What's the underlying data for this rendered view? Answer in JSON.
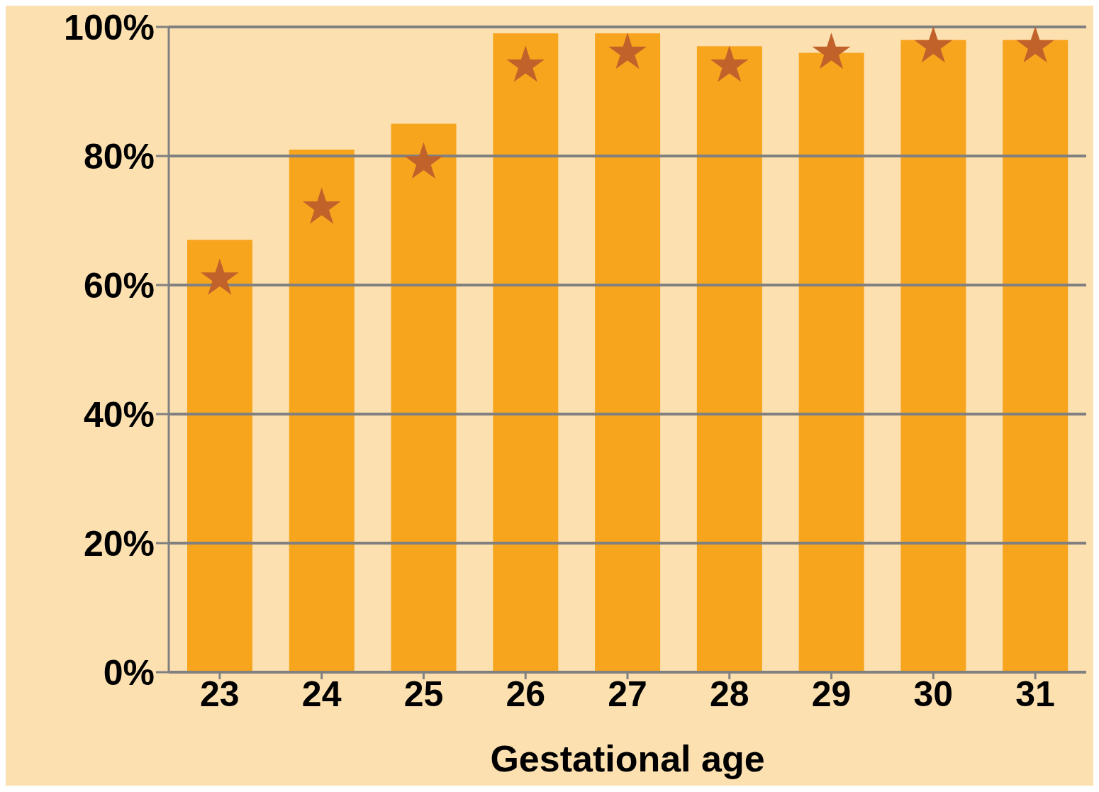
{
  "chart_data": {
    "type": "bar",
    "xlabel": "Gestational age",
    "categories": [
      "23",
      "24",
      "25",
      "26",
      "27",
      "28",
      "29",
      "30",
      "31"
    ],
    "series": [
      {
        "color": "#f8a51e",
        "values": [
          67,
          81,
          85,
          99,
          99,
          97,
          96,
          98,
          98
        ]
      },
      {
        "type": "scatter",
        "color": "#c0622a",
        "marker": "star",
        "x": [
          "23",
          "24",
          "25",
          "26",
          "27",
          "28",
          "29",
          "30",
          "31"
        ],
        "values": [
          61,
          72,
          79,
          94,
          96,
          94,
          96,
          97,
          97
        ]
      }
    ],
    "ylim": [
      0,
      100
    ],
    "yticks": [
      {
        "value": 0,
        "label": "0%"
      },
      {
        "value": 20,
        "label": "20%"
      },
      {
        "value": 40,
        "label": "40%"
      },
      {
        "value": 60,
        "label": "60%"
      },
      {
        "value": 80,
        "label": "80%"
      },
      {
        "value": 100,
        "label": "100%"
      }
    ],
    "grid": "y",
    "legend": false
  }
}
